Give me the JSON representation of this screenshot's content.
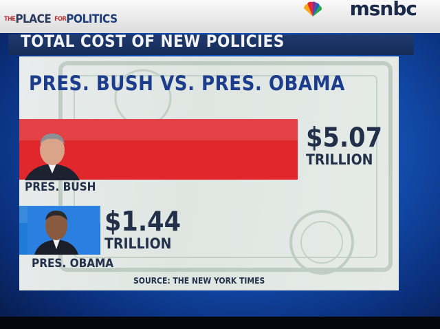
{
  "network": {
    "tagline_prefix": "THE",
    "tagline_place": "PLACE",
    "tagline_for": "FOR",
    "tagline_word": "POLITICS",
    "name": "msnbc"
  },
  "graphic": {
    "header": "TOTAL COST OF NEW POLICIES",
    "source": "SOURCE: THE NEW YORK TIMES"
  },
  "chart_data": {
    "type": "bar",
    "title": "PRES. BUSH VS. PRES. OBAMA",
    "orientation": "horizontal",
    "categories": [
      "PRES. BUSH",
      "PRES. OBAMA"
    ],
    "values": [
      5.07,
      1.44
    ],
    "value_labels": [
      "$5.07",
      "$1.44"
    ],
    "unit_label": "TRILLION",
    "bar_colors": [
      "#e0272c",
      "#1f7ad8"
    ],
    "xlim": [
      0,
      5.07
    ]
  }
}
